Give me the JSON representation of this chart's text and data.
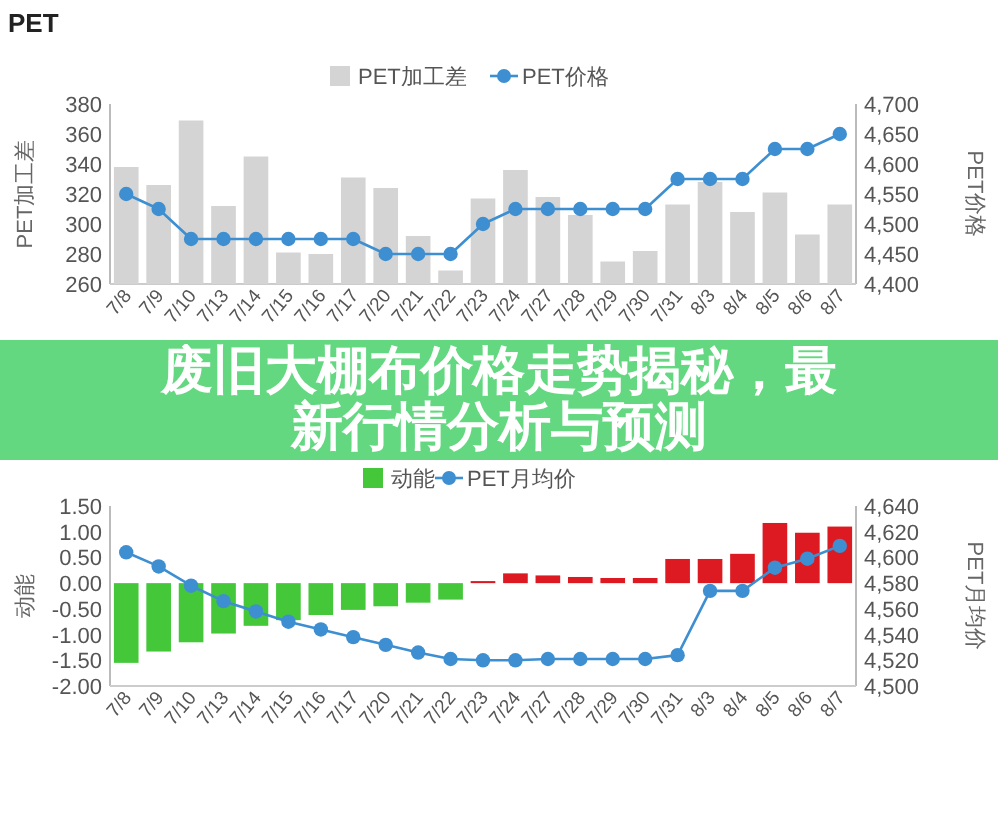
{
  "chart_data": [
    {
      "type": "bar",
      "title": "PET",
      "ylabel": "PET加工差",
      "y2label": "PET价格",
      "legend": "top",
      "annotations": [
        "废旧大棚布价格走势揭秘，最新行情分析与预测"
      ],
      "categories": [
        "7/8",
        "7/9",
        "7/10",
        "7/13",
        "7/14",
        "7/15",
        "7/16",
        "7/17",
        "7/20",
        "7/21",
        "7/22",
        "7/23",
        "7/24",
        "7/27",
        "7/28",
        "7/29",
        "7/30",
        "7/31",
        "8/3",
        "8/4",
        "8/5",
        "8/6",
        "8/7"
      ],
      "series": [
        {
          "name": "PET加工差",
          "color": "#d4d4d4",
          "values": [
            338,
            326,
            369,
            312,
            345,
            281,
            280,
            331,
            324,
            292,
            269,
            317,
            336,
            318,
            306,
            275,
            282,
            313,
            328,
            308,
            321,
            293,
            313
          ]
        },
        {
          "name": "PET价格",
          "type": "line",
          "axis": "y2",
          "marker": "circle",
          "color": "#3d8fd1",
          "values": [
            4550,
            4525,
            4475,
            4475,
            4475,
            4475,
            4475,
            4475,
            4450,
            4450,
            4450,
            4500,
            4525,
            4525,
            4525,
            4525,
            4525,
            4575,
            4575,
            4575,
            4625,
            4625,
            4650
          ]
        }
      ],
      "ylim": [
        260,
        380
      ],
      "yticks": [
        260,
        280,
        300,
        320,
        340,
        360,
        380
      ],
      "y2lim": [
        4400,
        4700
      ],
      "y2ticks": [
        {
          "value": 4400,
          "label": "4,400"
        },
        {
          "value": 4450,
          "label": "4,450"
        },
        {
          "value": 4500,
          "label": "4,500"
        },
        {
          "value": 4550,
          "label": "4,550"
        },
        {
          "value": 4600,
          "label": "4,600"
        },
        {
          "value": 4650,
          "label": "4,650"
        },
        {
          "value": 4700,
          "label": "4,700"
        }
      ]
    },
    {
      "type": "bar",
      "ylabel": "动能",
      "y2label": "PET月均价",
      "legend": "top",
      "categories": [
        "7/8",
        "7/9",
        "7/10",
        "7/13",
        "7/14",
        "7/15",
        "7/16",
        "7/17",
        "7/20",
        "7/21",
        "7/22",
        "7/23",
        "7/24",
        "7/27",
        "7/28",
        "7/29",
        "7/30",
        "7/31",
        "8/3",
        "8/4",
        "8/5",
        "8/6",
        "8/7"
      ],
      "series": [
        {
          "name": "动能",
          "color": "#44c83a",
          "colors": [
            "#44c83a",
            "#44c83a",
            "#44c83a",
            "#44c83a",
            "#44c83a",
            "#44c83a",
            "#44c83a",
            "#44c83a",
            "#44c83a",
            "#44c83a",
            "#44c83a",
            "#dd1a22",
            "#dd1a22",
            "#dd1a22",
            "#dd1a22",
            "#dd1a22",
            "#dd1a22",
            "#dd1a22",
            "#dd1a22",
            "#dd1a22",
            "#dd1a22",
            "#dd1a22",
            "#dd1a22"
          ],
          "values": [
            -1.55,
            -1.33,
            -1.15,
            -0.98,
            -0.83,
            -0.72,
            -0.62,
            -0.52,
            -0.45,
            -0.38,
            -0.32,
            0.04,
            0.19,
            0.15,
            0.12,
            0.1,
            0.1,
            0.47,
            0.47,
            0.57,
            1.17,
            0.98,
            1.1
          ]
        },
        {
          "name": "PET月均价",
          "type": "line",
          "axis": "y2",
          "marker": "circle",
          "color": "#3d8fd1",
          "values": [
            4604,
            4593,
            4578,
            4566,
            4558,
            4550,
            4544,
            4538,
            4532,
            4526,
            4521,
            4520,
            4520,
            4521,
            4521,
            4521,
            4521,
            4524,
            4574,
            4574,
            4592,
            4599,
            4609
          ]
        }
      ],
      "ylim": [
        -2,
        1.5
      ],
      "yticks": [
        {
          "value": -2,
          "label": "-2.00"
        },
        {
          "value": -1.5,
          "label": "-1.50"
        },
        {
          "value": -1,
          "label": "-1.00"
        },
        {
          "value": -0.5,
          "label": "-0.50"
        },
        {
          "value": 0,
          "label": "0.00"
        },
        {
          "value": 0.5,
          "label": "0.50"
        },
        {
          "value": 1,
          "label": "1.00"
        },
        {
          "value": 1.5,
          "label": "1.50"
        }
      ],
      "y2lim": [
        4500,
        4640
      ],
      "y2ticks": [
        {
          "value": 4500,
          "label": "4,500"
        },
        {
          "value": 4520,
          "label": "4,520"
        },
        {
          "value": 4540,
          "label": "4,540"
        },
        {
          "value": 4560,
          "label": "4,560"
        },
        {
          "value": 4580,
          "label": "4,580"
        },
        {
          "value": 4600,
          "label": "4,600"
        },
        {
          "value": 4620,
          "label": "4,620"
        },
        {
          "value": 4640,
          "label": "4,640"
        }
      ]
    }
  ]
}
